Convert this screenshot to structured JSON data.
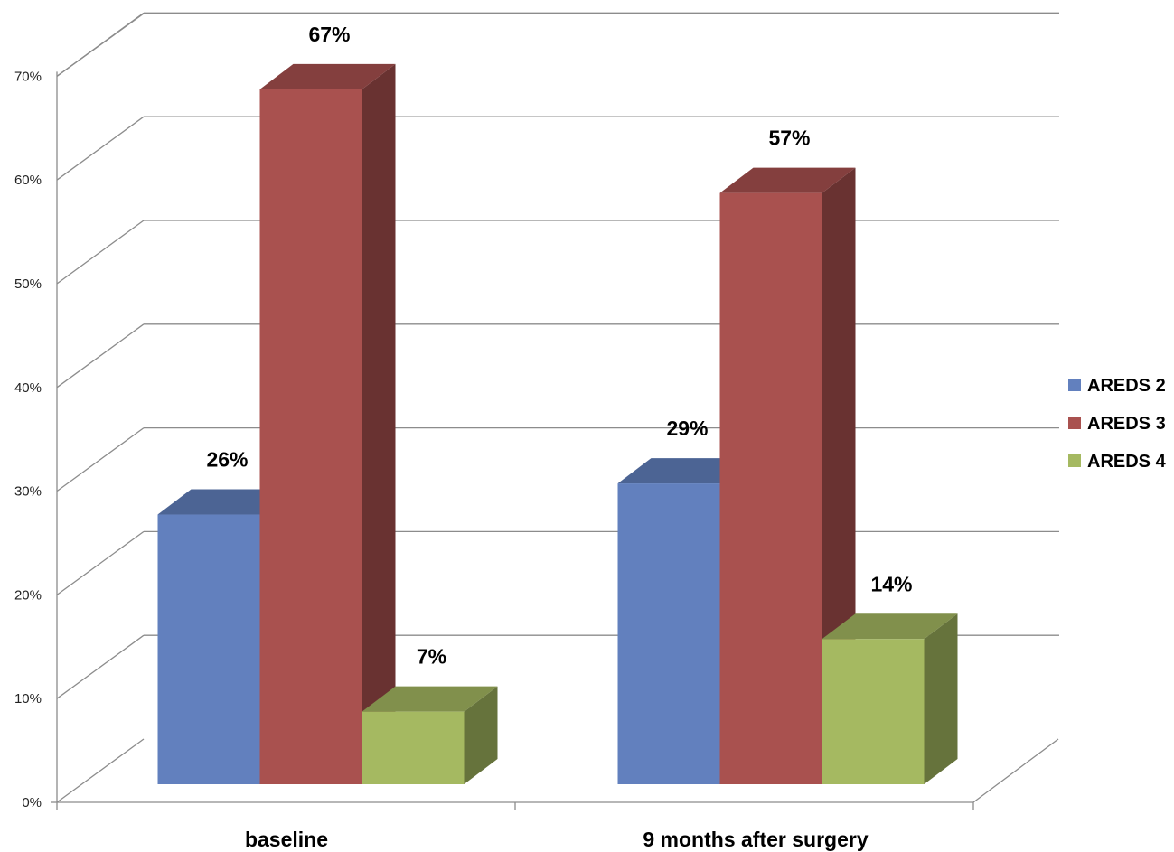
{
  "chart_data": {
    "type": "bar",
    "categories": [
      "baseline",
      "9 months after surgery"
    ],
    "series": [
      {
        "name": "AREDS 2",
        "values": [
          26,
          29
        ],
        "labels": [
          "26%",
          "29%"
        ],
        "color": "#6280BE"
      },
      {
        "name": "AREDS 3",
        "values": [
          67,
          57
        ],
        "labels": [
          "67%",
          "57%"
        ],
        "color": "#A9514F"
      },
      {
        "name": "AREDS 4",
        "values": [
          7,
          14
        ],
        "labels": [
          "7%",
          "14%"
        ],
        "color": "#A5B961"
      }
    ],
    "ylim": [
      0,
      70
    ],
    "ytick_labels": [
      "0%",
      "10%",
      "20%",
      "30%",
      "40%",
      "50%",
      "60%",
      "70%"
    ],
    "grid": true,
    "legend_position": "right",
    "style": "3d-clustered-column"
  }
}
